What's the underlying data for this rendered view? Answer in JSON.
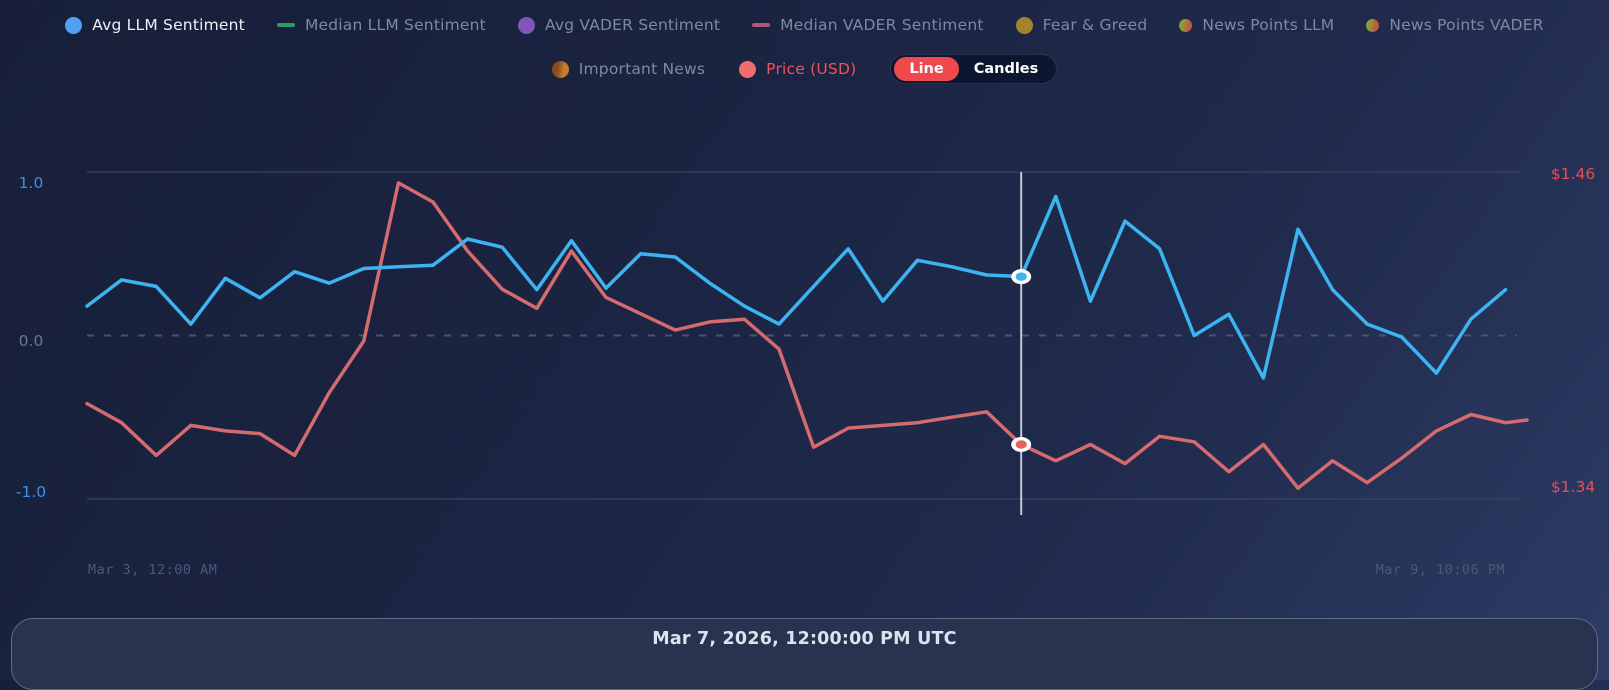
{
  "legend": {
    "row1": [
      {
        "label": "Avg LLM Sentiment",
        "swatch": "circle",
        "color": "#539ff0",
        "active": true
      },
      {
        "label": "Median LLM Sentiment",
        "swatch": "dash",
        "color": "#2f9b6b",
        "active": false
      },
      {
        "label": "Avg VADER Sentiment",
        "swatch": "circle",
        "color": "#7e57b8",
        "active": false
      },
      {
        "label": "Median VADER Sentiment",
        "swatch": "dash",
        "color": "#b3537e",
        "active": false
      },
      {
        "label": "Fear & Greed",
        "swatch": "circle",
        "color": "#a3832c",
        "active": false
      },
      {
        "label": "News Points LLM",
        "swatch": "circle",
        "small": true,
        "color": "#8a9a3c",
        "color2": "#c05a44",
        "active": false
      },
      {
        "label": "News Points VADER",
        "swatch": "circle",
        "small": true,
        "color": "#8a9a3c",
        "color2": "#c05a44",
        "active": false
      }
    ],
    "row2": [
      {
        "label": "Important News",
        "swatch": "circle",
        "color": "#8a4c20",
        "color2": "#c9802e",
        "active": false
      },
      {
        "label": "Price (USD)",
        "swatch": "circle",
        "color": "#f26b6e",
        "active": true,
        "text_color": "#f15358"
      }
    ],
    "toggle": {
      "options": [
        "Line",
        "Candles"
      ],
      "selected": "Line",
      "selected_bg": "#ee4a4d"
    }
  },
  "axes": {
    "left_labels": [
      "1.0",
      "0.0",
      "-1.0"
    ],
    "right_labels": [
      "$1.46",
      "$1.34"
    ],
    "x_left_label": "Mar 3, 12:00 AM",
    "x_right_label": "Mar 9, 10:06 PM"
  },
  "tooltip": {
    "timestamp": "Mar 7, 2026, 12:00:00 PM UTC"
  },
  "chart_data": {
    "type": "line",
    "x_start_label": "Mar 3, 12:00 AM",
    "x_end_label": "Mar 9, 10:06 PM",
    "hover_label": "Mar 7, 2026, 12:00:00 PM UTC",
    "hover_index": 27,
    "sentiment_ylim": [
      -1.0,
      1.0
    ],
    "price_ylim": [
      1.34,
      1.46
    ],
    "grid": {
      "top_value": 1.0,
      "zero_dashed": true,
      "bottom_value": -1.0
    },
    "series": [
      {
        "name": "Price (USD)",
        "axis": "price",
        "color": "#d56b6e",
        "values": [
          1.375,
          1.368,
          1.356,
          1.367,
          1.365,
          1.364,
          1.356,
          1.379,
          1.398,
          1.456,
          1.449,
          1.431,
          1.417,
          1.41,
          1.431,
          1.414,
          1.408,
          1.402,
          1.405,
          1.406,
          1.395,
          1.359,
          1.366,
          1.367,
          1.368,
          1.37,
          1.372,
          1.36,
          1.354,
          1.36,
          1.353,
          1.363,
          1.361,
          1.35,
          1.36,
          1.344,
          1.354,
          1.346,
          1.355,
          1.365,
          1.371,
          1.368,
          1.369
        ]
      },
      {
        "name": "Avg LLM Sentiment",
        "axis": "sentiment",
        "color": "#3cb4f2",
        "values": [
          0.18,
          0.34,
          0.3,
          0.07,
          0.35,
          0.23,
          0.39,
          0.32,
          0.41,
          0.42,
          0.43,
          0.59,
          0.54,
          0.28,
          0.58,
          0.29,
          0.5,
          0.48,
          0.32,
          0.18,
          0.07,
          0.3,
          0.53,
          0.21,
          0.46,
          0.42,
          0.37,
          0.36,
          0.85,
          0.21,
          0.7,
          0.53,
          0.0,
          0.13,
          -0.26,
          0.65,
          0.28,
          0.07,
          -0.01,
          -0.23,
          0.1,
          0.28
        ]
      }
    ],
    "hover_values": {
      "avg_llm_sentiment": 0.36,
      "price_usd": 1.36
    }
  }
}
